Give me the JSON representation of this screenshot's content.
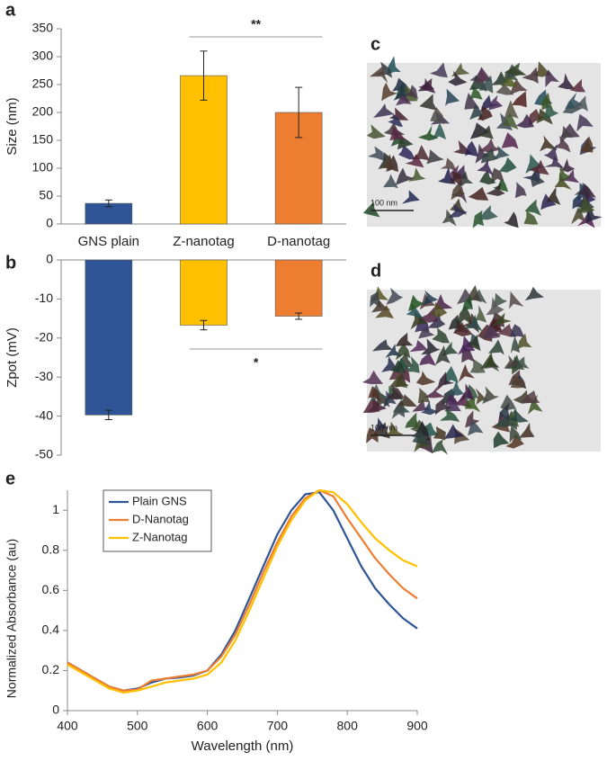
{
  "chart_data": [
    {
      "type": "bar",
      "panel": "a",
      "ylabel": "Size (nm)",
      "categories": [
        "GNS plain",
        "Z-nanotag",
        "D-nanotag"
      ],
      "values": [
        37,
        266,
        200
      ],
      "errors": [
        6,
        44,
        45
      ],
      "colors": [
        "#2f5597",
        "#ffc000",
        "#ed7d31"
      ],
      "ylim": [
        0,
        350
      ],
      "yticks": [
        0,
        50,
        100,
        150,
        200,
        250,
        300,
        350
      ],
      "annotation": "**"
    },
    {
      "type": "bar",
      "panel": "b",
      "ylabel": "Zpot (mV)",
      "categories": [
        null,
        null,
        null
      ],
      "values": [
        -39.7,
        -16.7,
        -14.4
      ],
      "errors": [
        1.2,
        1.2,
        0.8
      ],
      "colors": [
        "#2f5597",
        "#ffc000",
        "#ed7d31"
      ],
      "ylim": [
        -50,
        0
      ],
      "yticks": [
        -50,
        -40,
        -30,
        -20,
        -10,
        0
      ],
      "annotation": "*"
    },
    {
      "type": "line",
      "panel": "e",
      "xlabel": "Wavelength (nm)",
      "ylabel": "Normalized Absorbance (au)",
      "x": [
        400,
        420,
        440,
        460,
        480,
        500,
        520,
        540,
        560,
        580,
        600,
        620,
        640,
        660,
        680,
        700,
        720,
        740,
        760,
        780,
        800,
        820,
        840,
        860,
        880,
        900
      ],
      "series": [
        {
          "name": "Plain GNS",
          "color": "#2f5597",
          "values": [
            0.24,
            0.2,
            0.16,
            0.12,
            0.1,
            0.11,
            0.14,
            0.16,
            0.165,
            0.175,
            0.2,
            0.28,
            0.4,
            0.56,
            0.72,
            0.88,
            1.0,
            1.08,
            1.09,
            1.0,
            0.86,
            0.72,
            0.61,
            0.53,
            0.46,
            0.41
          ]
        },
        {
          "name": "D-Nanotag",
          "color": "#ed7d31",
          "values": [
            0.24,
            0.2,
            0.16,
            0.12,
            0.1,
            0.105,
            0.15,
            0.16,
            0.17,
            0.18,
            0.2,
            0.27,
            0.38,
            0.53,
            0.69,
            0.84,
            0.97,
            1.06,
            1.1,
            1.07,
            0.96,
            0.86,
            0.76,
            0.68,
            0.61,
            0.56
          ]
        },
        {
          "name": "Z-Nanotag",
          "color": "#ffc000",
          "values": [
            0.23,
            0.19,
            0.15,
            0.11,
            0.09,
            0.1,
            0.12,
            0.14,
            0.15,
            0.16,
            0.18,
            0.24,
            0.35,
            0.5,
            0.66,
            0.82,
            0.95,
            1.05,
            1.1,
            1.09,
            1.03,
            0.94,
            0.86,
            0.8,
            0.75,
            0.72
          ]
        }
      ],
      "xlim": [
        400,
        900
      ],
      "xticks": [
        400,
        500,
        600,
        700,
        800,
        900
      ],
      "ylim": [
        0,
        1.1
      ],
      "yticks": [
        0,
        0.2,
        0.4,
        0.6,
        0.8,
        1
      ],
      "legend": "upper-left"
    }
  ],
  "images": [
    {
      "panel": "c",
      "scale_bar": "100 nm"
    },
    {
      "panel": "d",
      "scale_bar": "100 nm"
    }
  ]
}
